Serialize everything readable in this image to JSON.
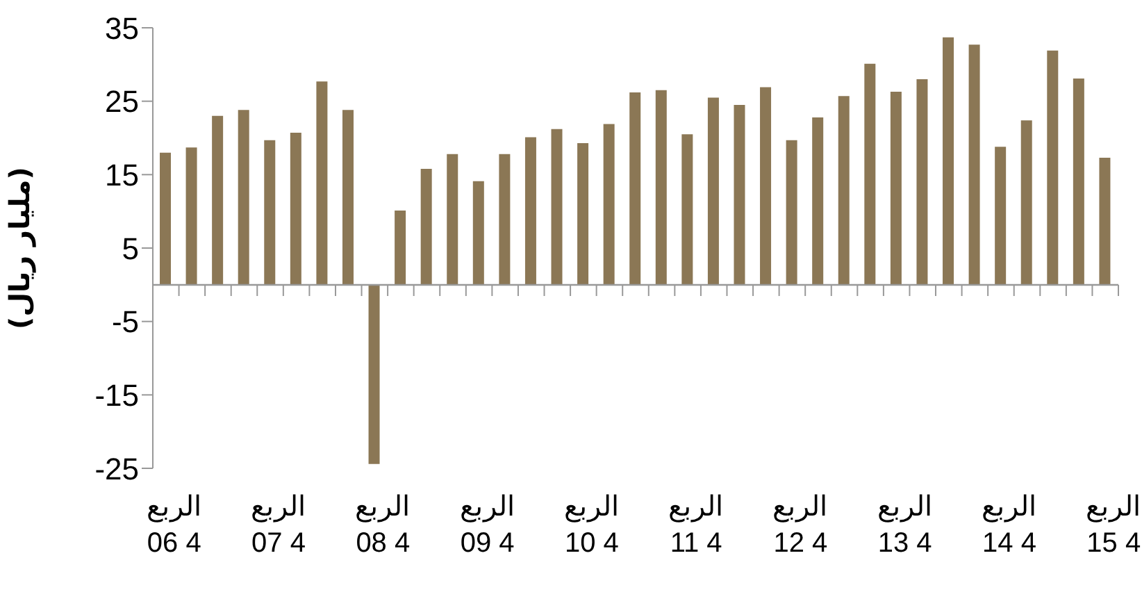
{
  "chart_data": {
    "type": "bar",
    "ylabel": "(مليار ريال)",
    "categories": [
      "الربع 4 06",
      null,
      null,
      null,
      "الربع 4 07",
      null,
      null,
      null,
      "الربع 4 08",
      null,
      null,
      null,
      "الربع 4 09",
      null,
      null,
      null,
      "الربع 4 10",
      null,
      null,
      null,
      "الربع 4 11",
      null,
      null,
      null,
      "الربع 4 12",
      null,
      null,
      null,
      "الربع 4 13",
      null,
      null,
      null,
      "الربع 4 14",
      null,
      null,
      null,
      "الربع 4 15"
    ],
    "values": [
      18,
      18.7,
      23,
      23.8,
      19.7,
      20.7,
      27.7,
      23.8,
      -24.4,
      10.1,
      15.8,
      17.8,
      14.1,
      17.8,
      20.1,
      21.2,
      19.3,
      21.9,
      26.2,
      26.5,
      20.5,
      25.5,
      24.5,
      26.9,
      19.7,
      22.8,
      25.7,
      30.1,
      26.3,
      28,
      33.7,
      32.7,
      18.8,
      22.4,
      31.9,
      28.1,
      17.3
    ],
    "color": "#8b7755",
    "ylim": [
      -25,
      35
    ],
    "yticks": [
      -25,
      -15,
      -5,
      5,
      15,
      25,
      35
    ],
    "grid": false,
    "legend": false
  }
}
